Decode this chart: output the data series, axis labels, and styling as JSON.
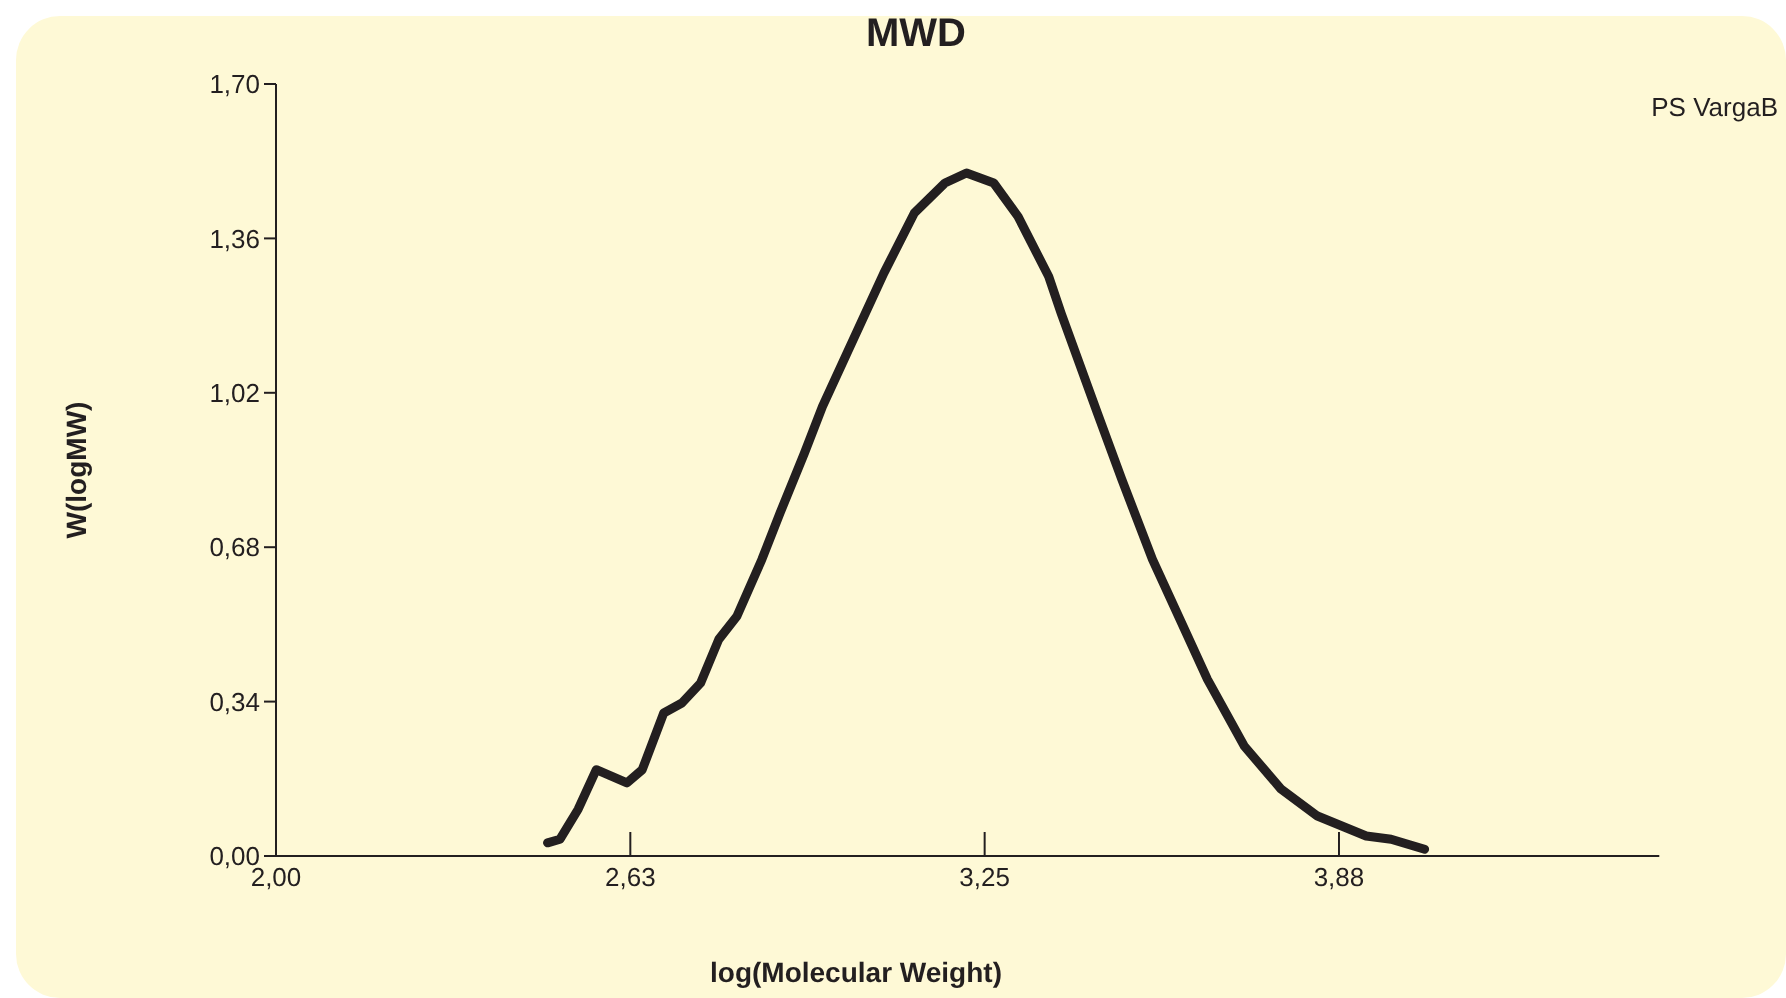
{
  "chart_data": {
    "type": "line",
    "title": "MWD",
    "xlabel": "log(Molecular Weight)",
    "ylabel": "W(logMW)",
    "xlim": [
      2,
      4.44
    ],
    "xticks": [
      {
        "value": 2,
        "label": "2,00"
      },
      {
        "value": 2.625,
        "label": "2,63"
      },
      {
        "value": 3.25,
        "label": "3,25"
      },
      {
        "value": 3.875,
        "label": "3,88"
      }
    ],
    "ylim": [
      0,
      1.7
    ],
    "yticks": [
      {
        "value": 0,
        "label": "0,00"
      },
      {
        "value": 0.34,
        "label": "0,34"
      },
      {
        "value": 0.68,
        "label": "0,68"
      },
      {
        "value": 1.02,
        "label": "1,02"
      },
      {
        "value": 1.36,
        "label": "1,36"
      },
      {
        "value": 1.7,
        "label": "1,70"
      }
    ],
    "grid": false,
    "legend": "top right",
    "marker": "none",
    "line_style": "solid",
    "series": [
      {
        "name": "PS VargaB",
        "color": "#231f20",
        "x": [
          2.479,
          2.501,
          2.533,
          2.565,
          2.619,
          2.646,
          2.684,
          2.716,
          2.749,
          2.781,
          2.813,
          2.857,
          2.889,
          2.932,
          2.964,
          3.007,
          3.072,
          3.126,
          3.18,
          3.218,
          3.266,
          3.309,
          3.363,
          3.385,
          3.449,
          3.492,
          3.546,
          3.6,
          3.643,
          3.708,
          3.773,
          3.837,
          3.923,
          3.967,
          4.026
        ],
        "values": [
          0.029,
          0.037,
          0.103,
          0.19,
          0.161,
          0.19,
          0.315,
          0.337,
          0.381,
          0.477,
          0.528,
          0.653,
          0.755,
          0.887,
          0.99,
          1.107,
          1.283,
          1.416,
          1.482,
          1.504,
          1.482,
          1.408,
          1.276,
          1.195,
          0.975,
          0.829,
          0.653,
          0.506,
          0.389,
          0.242,
          0.147,
          0.088,
          0.044,
          0.037,
          0.015
        ]
      }
    ]
  }
}
